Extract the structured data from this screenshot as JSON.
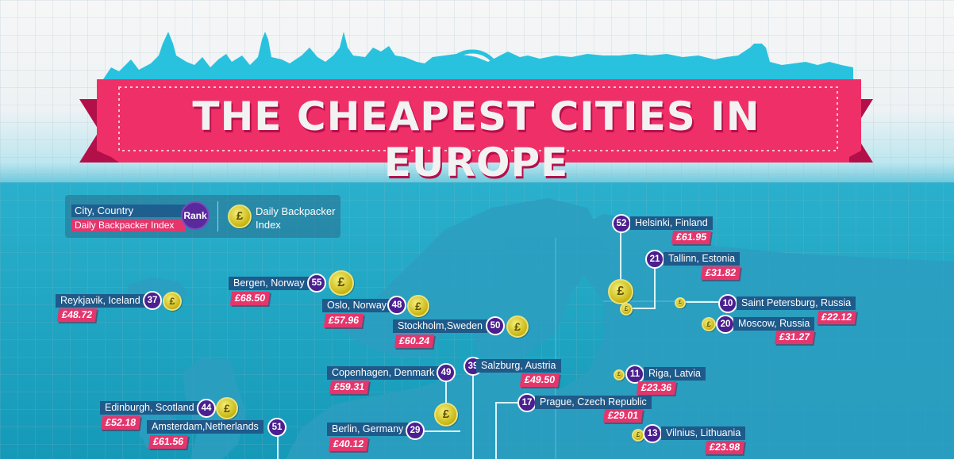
{
  "title": "THE CHEAPEST CITIES IN EUROPE",
  "legend": {
    "city_country": "City, Country",
    "rank": "Rank",
    "daily_index": "Daily Backpacker Index",
    "coin_label": "Daily Backpacker Index"
  },
  "coin_symbol": "£",
  "cities": [
    {
      "name": "Helsinki, Finland",
      "rank": "52",
      "price": "£61.95"
    },
    {
      "name": "Tallinn, Estonia",
      "rank": "21",
      "price": "£31.82"
    },
    {
      "name": "Saint Petersburg, Russia",
      "rank": "10",
      "price": "£22.12"
    },
    {
      "name": "Moscow, Russia",
      "rank": "20",
      "price": "£31.27"
    },
    {
      "name": "Bergen, Norway",
      "rank": "55",
      "price": "£68.50"
    },
    {
      "name": "Reykjavik, Iceland",
      "rank": "37",
      "price": "£48.72"
    },
    {
      "name": "Oslo, Norway",
      "rank": "48",
      "price": "£57.96"
    },
    {
      "name": "Stockholm,Sweden",
      "rank": "50",
      "price": "£60.24"
    },
    {
      "name": "Copenhagen, Denmark",
      "rank": "49",
      "price": "£59.31"
    },
    {
      "name": "Salzburg, Austria",
      "rank": "39",
      "price": "£49.50"
    },
    {
      "name": "Riga, Latvia",
      "rank": "11",
      "price": "£23.36"
    },
    {
      "name": "Edinburgh, Scotland",
      "rank": "44",
      "price": "£52.18"
    },
    {
      "name": "Prague, Czech Republic",
      "rank": "17",
      "price": "£29.01"
    },
    {
      "name": "Amsterdam,Netherlands",
      "rank": "51",
      "price": "£61.56"
    },
    {
      "name": "Berlin, Germany",
      "rank": "29",
      "price": "£40.12"
    },
    {
      "name": "Vilnius, Lithuania",
      "rank": "13",
      "price": "£23.98"
    }
  ]
}
